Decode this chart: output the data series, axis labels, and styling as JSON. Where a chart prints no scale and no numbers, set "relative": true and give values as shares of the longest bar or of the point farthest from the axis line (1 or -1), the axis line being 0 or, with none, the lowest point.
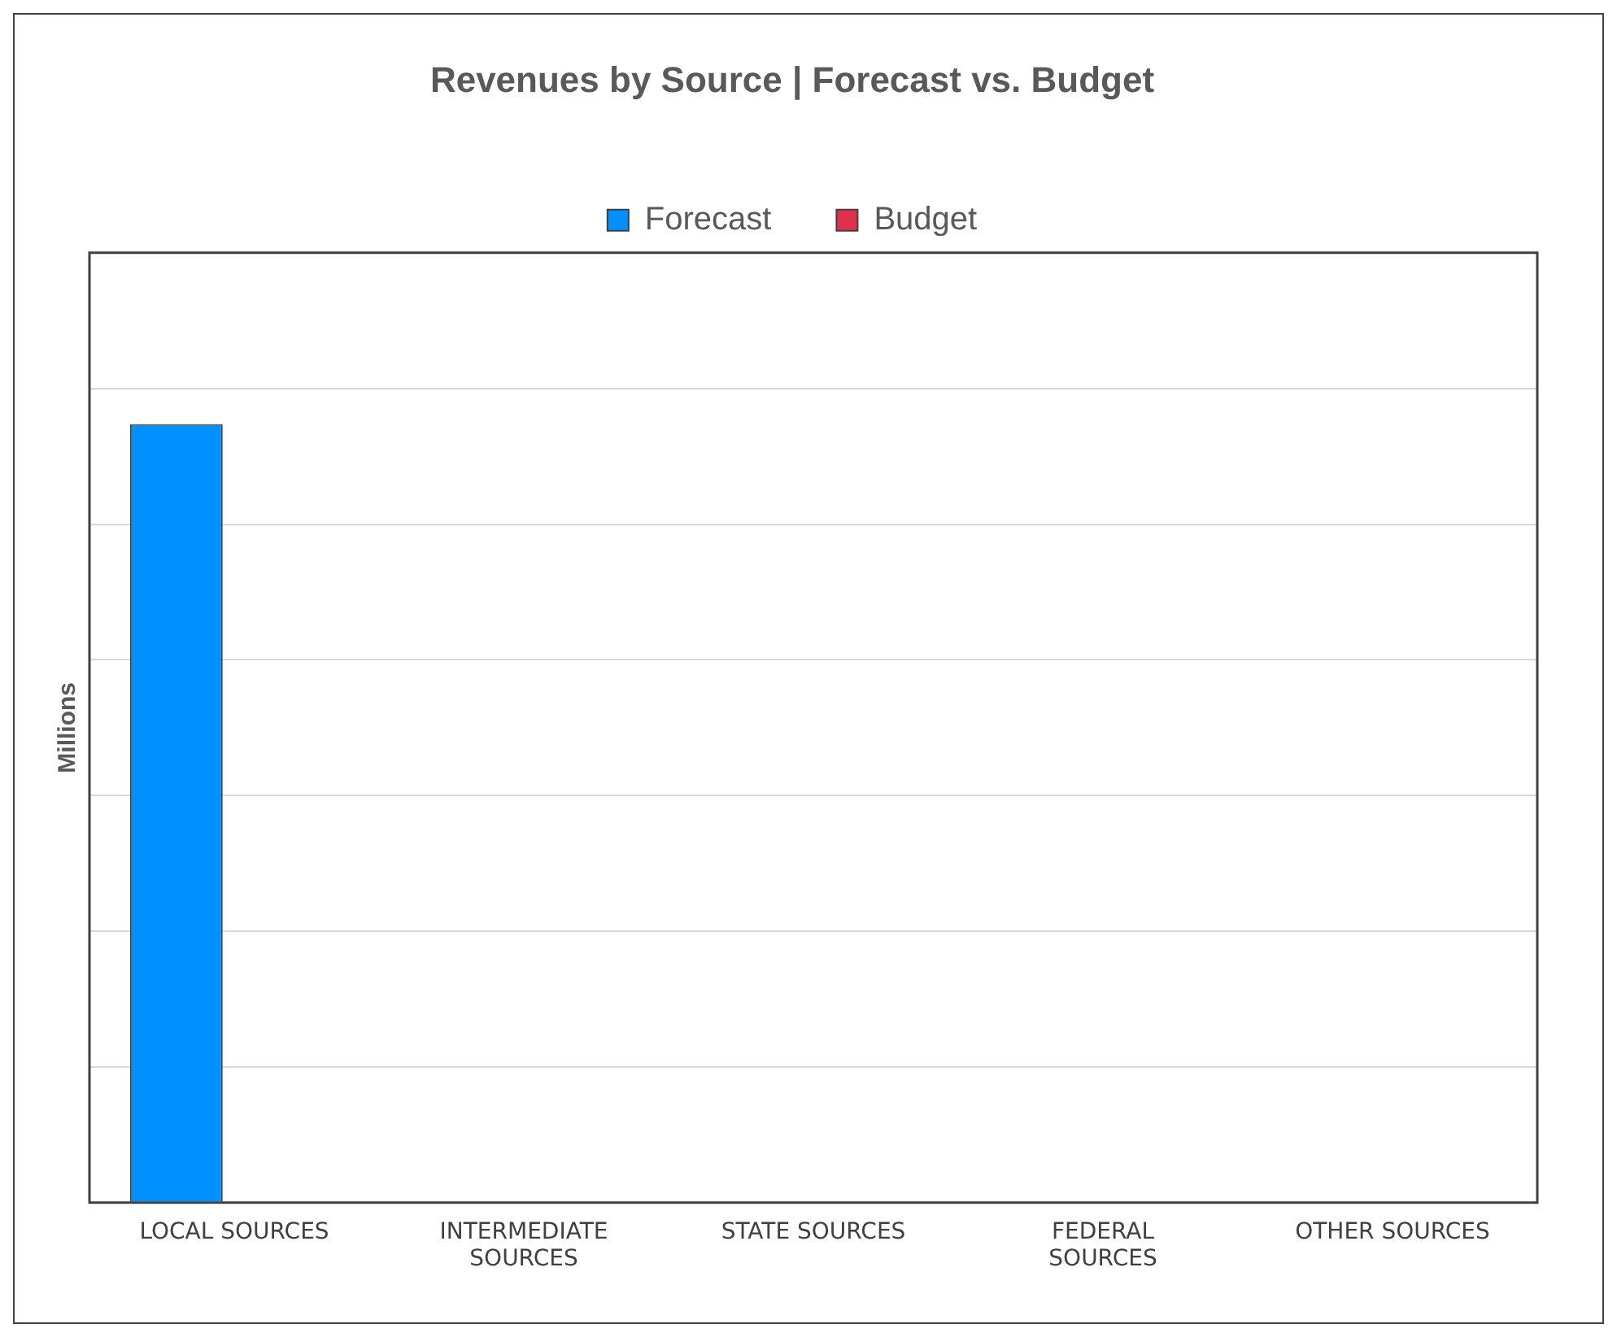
{
  "chart_data": {
    "type": "bar",
    "title": "Revenues by Source | Forecast vs. Budget",
    "ylabel": "Millions",
    "categories": [
      "LOCAL SOURCES",
      "INTERMEDIATE SOURCES",
      "STATE SOURCES",
      "FEDERAL SOURCES",
      "OTHER SOURCES"
    ],
    "series": [
      {
        "name": "Forecast",
        "color": "#0090ff",
        "values": [
          1,
          0,
          0,
          0,
          0
        ]
      },
      {
        "name": "Budget",
        "color": "#e0304e",
        "values": [
          0,
          0,
          0,
          0,
          0
        ]
      }
    ],
    "relative": true,
    "grid": "y",
    "legend": "top"
  }
}
